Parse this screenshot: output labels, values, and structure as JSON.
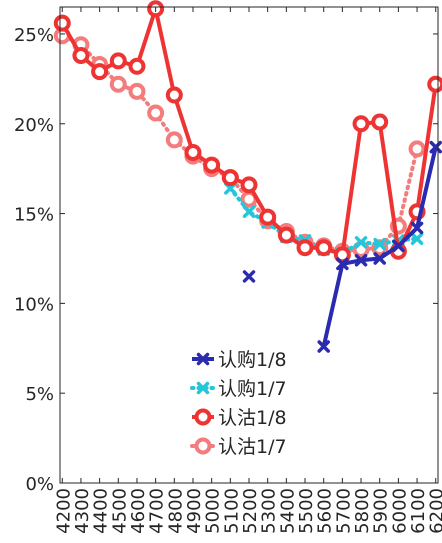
{
  "chart_data": {
    "type": "line",
    "x": [
      4200,
      4300,
      4400,
      4500,
      4600,
      4700,
      4800,
      4900,
      5000,
      5100,
      5200,
      5300,
      5400,
      5500,
      5600,
      5700,
      5800,
      5900,
      6000,
      6100,
      6200
    ],
    "x_tick_labels": [
      "4200",
      "4300",
      "4400",
      "4500",
      "4600",
      "4700",
      "4800",
      "4900",
      "5000",
      "5100",
      "5200",
      "5300",
      "5400",
      "5500",
      "5600",
      "5700",
      "5800",
      "5900",
      "6000",
      "6100",
      "6200"
    ],
    "ylim": [
      0,
      0.265
    ],
    "y_ticks": [
      0,
      0.05,
      0.1,
      0.15,
      0.2,
      0.25
    ],
    "y_tick_labels": [
      "0%",
      "5%",
      "10%",
      "15%",
      "20%",
      "25%"
    ],
    "grid": false,
    "legend_position": "lower-center",
    "series": [
      {
        "name": "认购1/8",
        "color": "#2b2bb0",
        "marker": "x",
        "line": "solid",
        "points": [
          [
            5200,
            0.115
          ],
          [
            5600,
            0.076
          ],
          [
            5700,
            0.122
          ],
          [
            5800,
            0.124
          ],
          [
            5900,
            0.125
          ],
          [
            6000,
            0.132
          ],
          [
            6100,
            0.142
          ],
          [
            6200,
            0.187
          ]
        ],
        "connected_from": 5600
      },
      {
        "name": "认购1/7",
        "color": "#26c6da",
        "marker": "x",
        "line": "dotted",
        "points": [
          [
            5100,
            0.164
          ],
          [
            5200,
            0.151
          ],
          [
            5300,
            0.145
          ],
          [
            5400,
            0.137
          ],
          [
            5500,
            0.135
          ],
          [
            5600,
            0.13
          ],
          [
            5700,
            0.128
          ],
          [
            5800,
            0.134
          ],
          [
            5900,
            0.133
          ],
          [
            6000,
            0.135
          ],
          [
            6100,
            0.136
          ]
        ],
        "connected_from": 5100
      },
      {
        "name": "认沽1/8",
        "color": "#ee3333",
        "marker": "o",
        "line": "solid",
        "points": [
          [
            4200,
            0.256
          ],
          [
            4300,
            0.238
          ],
          [
            4400,
            0.229
          ],
          [
            4500,
            0.235
          ],
          [
            4600,
            0.232
          ],
          [
            4700,
            0.264
          ],
          [
            4800,
            0.216
          ],
          [
            4900,
            0.184
          ],
          [
            5000,
            0.177
          ],
          [
            5100,
            0.17
          ],
          [
            5200,
            0.166
          ],
          [
            5300,
            0.148
          ],
          [
            5400,
            0.138
          ],
          [
            5500,
            0.131
          ],
          [
            5600,
            0.131
          ],
          [
            5700,
            0.127
          ],
          [
            5800,
            0.2
          ],
          [
            5900,
            0.201
          ],
          [
            6000,
            0.129
          ],
          [
            6100,
            0.151
          ],
          [
            6200,
            0.222
          ]
        ],
        "connected_from": 4200
      },
      {
        "name": "认沽1/7",
        "color": "#f47c7c",
        "marker": "o",
        "line": "dotted",
        "points": [
          [
            4200,
            0.249
          ],
          [
            4300,
            0.244
          ],
          [
            4400,
            0.233
          ],
          [
            4500,
            0.222
          ],
          [
            4600,
            0.218
          ],
          [
            4700,
            0.206
          ],
          [
            4800,
            0.191
          ],
          [
            4900,
            0.182
          ],
          [
            5000,
            0.175
          ],
          [
            5100,
            0.17
          ],
          [
            5200,
            0.158
          ],
          [
            5300,
            0.146
          ],
          [
            5400,
            0.14
          ],
          [
            5500,
            0.134
          ],
          [
            5600,
            0.132
          ],
          [
            5700,
            0.129
          ],
          [
            5800,
            0.13
          ],
          [
            5900,
            0.131
          ],
          [
            6000,
            0.143
          ],
          [
            6100,
            0.186
          ]
        ],
        "connected_from": 4200
      }
    ]
  }
}
